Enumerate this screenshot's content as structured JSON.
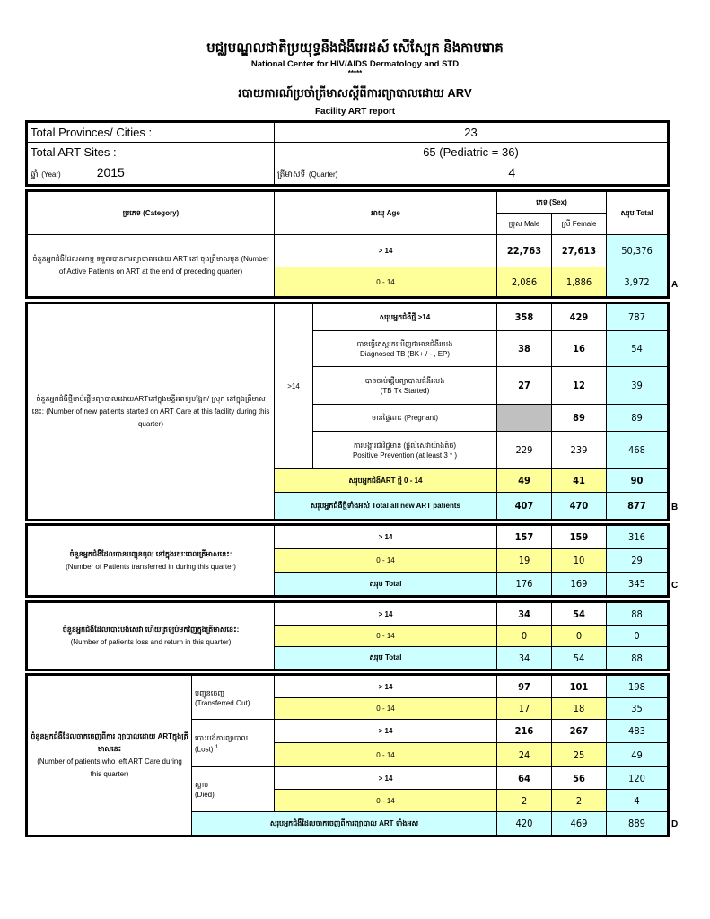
{
  "header": {
    "org_kh": "មជ្ឈមណ្ឌលជាតិប្រយុទ្ធនឹងជំងឺអេដស៍ សើស្បែក និងកាមរោគ",
    "org_en": "National Center for HIV/AIDS Dermatology and STD",
    "stars": "*****",
    "report_kh": "របាយការណ៍ប្រចាំត្រីមាសស្តីពីការព្យាបាលដោយ ARV",
    "report_en": "Facility ART report"
  },
  "info": {
    "provinces_label": "Total Provinces/ Cities :",
    "provinces_value": "23",
    "sites_label": "Total ART Sites :",
    "sites_value": "65 (Pediatric = 36)",
    "year_label_kh": "ឆ្នាំ",
    "year_label": "(Year)",
    "year_value": "2015",
    "quarter_label_kh": "ត្រីមាសទី",
    "quarter_label": "(Quarter)",
    "quarter_value": "4"
  },
  "columns": {
    "category": "ប្រភេទ (Category)",
    "age": "អាយុ Age",
    "sex": "ភេទ (Sex)",
    "male": "ប្រុស Male",
    "female": "ស្រី Female",
    "total": "សរុប Total"
  },
  "colors": {
    "yellow": "#ffff99",
    "cyan": "#ccffff",
    "gray": "#c0c0c0"
  },
  "section_a": {
    "label": "ចំនួនអ្នកជំងឺដែលសកម្ម ទទួលបានការព្យាបាលដោយ ART នៅ ចុងត្រីមាសមុន (Number of Active Patients on ART at the end of preceding quarter)",
    "marker": "A",
    "rows": [
      {
        "age": "> 14",
        "male": "22,763",
        "female": "27,613",
        "total": "50,376"
      },
      {
        "age": "0 - 14",
        "male": "2,086",
        "female": "1,886",
        "total": "3,972"
      }
    ]
  },
  "section_b": {
    "label": "ចំនួនអ្នកជំងឺថ្មីចាប់ផ្តើមព្យាបាលដោយARTនៅក្នុងមន្ទីរពេទ្យបង្អែក/ ស្រុក នៅក្នុងត្រីមាសនេះ: (Number of new patients started on ART Care at this facility during this quarter)",
    "age_group": ">14",
    "marker": "B",
    "rows": [
      {
        "label": "សរុបអ្នកជំងឺថ្មី >14",
        "male": "358",
        "female": "429",
        "total": "787"
      },
      {
        "label": "បានធ្វើតេស្តរកឃើញថាមានជំងឺរបេង",
        "sublabel": "Diagnosed TB (BK+ / - , EP)",
        "male": "38",
        "female": "16",
        "total": "54"
      },
      {
        "label": "បានចាប់ផ្តើមព្យាបាលជំងឺរបេង",
        "sublabel": "(TB Tx Started)",
        "male": "27",
        "female": "12",
        "total": "39"
      },
      {
        "label": "មានផ្ទៃពោះ (Pregnant)",
        "male": "",
        "female": "89",
        "total": "89"
      },
      {
        "label": "ការបង្ការជាវិជ្ជមាន (ផ្តល់សេវាយ៉ាងតិច)",
        "sublabel": "Positive Prevention (at least 3 * )",
        "male": "229",
        "female": "239",
        "total": "468"
      }
    ],
    "peds": {
      "label": "សរុបអ្នកជំងឺART ថ្មី 0 - 14",
      "male": "49",
      "female": "41",
      "total": "90"
    },
    "total": {
      "label": "សរុបអ្នកជំងឺថ្មីទាំងអស់ Total all new ART patients",
      "male": "407",
      "female": "470",
      "total": "877"
    }
  },
  "section_c": {
    "label_kh": "ចំនួនអ្នកជំងឺដែលបានបញ្ជូនចូល នៅក្នុងរយៈពេលត្រីមាសនេះ:",
    "label_en": "(Number of Patients transferred in during this quarter)",
    "marker": "C",
    "rows": [
      {
        "age": "> 14",
        "male": "157",
        "female": "159",
        "total": "316"
      },
      {
        "age": "0 - 14",
        "male": "19",
        "female": "10",
        "total": "29"
      },
      {
        "age": "សរុប    Total",
        "male": "176",
        "female": "169",
        "total": "345"
      }
    ]
  },
  "section_lr": {
    "label_kh": "ចំនួនអ្នកជំងឺដែលបោះបង់សេវា ហើយត្រឡប់មកវិញក្នុងត្រីមាសនេះ:",
    "label_en": "(Number of patients loss and return in this quarter)",
    "rows": [
      {
        "age": "> 14",
        "male": "34",
        "female": "54",
        "total": "88"
      },
      {
        "age": "0 - 14",
        "male": "0",
        "female": "0",
        "total": "0"
      },
      {
        "age": "សរុប    Total",
        "male": "34",
        "female": "54",
        "total": "88"
      }
    ]
  },
  "section_d": {
    "label_kh": "ចំនួនអ្នកជំងឺដែលចាកចេញពីការ ព្យាបាលដោយ ARTក្នុងត្រីមាសនេះ",
    "label_en": "(Number of patients who left ART Care during this quarter)",
    "marker": "D",
    "groups": [
      {
        "kh": "បញ្ជូនចេញ",
        "en": "(Transferred Out)",
        "rows": [
          {
            "age": "> 14",
            "male": "97",
            "female": "101",
            "total": "198"
          },
          {
            "age": "0 - 14",
            "male": "17",
            "female": "18",
            "total": "35"
          }
        ]
      },
      {
        "kh": "បោះបង់ការព្យាបាល",
        "en": "(Lost)",
        "sup": "1",
        "rows": [
          {
            "age": "> 14",
            "male": "216",
            "female": "267",
            "total": "483"
          },
          {
            "age": "0 - 14",
            "male": "24",
            "female": "25",
            "total": "49"
          }
        ]
      },
      {
        "kh": "ស្លាប់",
        "en": "(Died)",
        "rows": [
          {
            "age": "> 14",
            "male": "64",
            "female": "56",
            "total": "120"
          },
          {
            "age": "0 - 14",
            "male": "2",
            "female": "2",
            "total": "4"
          }
        ]
      }
    ],
    "total": {
      "label": "សរុបអ្នកជំងឺដែលចាកចេញពីការព្យាបាល ART ទាំងអស់",
      "male": "420",
      "female": "469",
      "total": "889"
    }
  }
}
